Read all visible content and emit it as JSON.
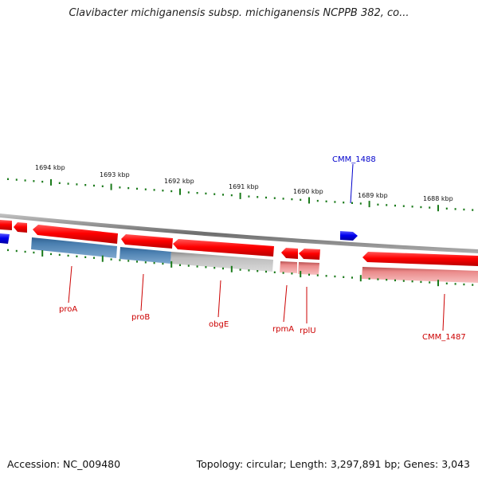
{
  "title": "Clavibacter michiganensis subsp. michiganensis NCPPB 382, co...",
  "footer": {
    "accession": "Accession: NC_009480",
    "summary": "Topology: circular; Length: 3,297,891 bp; Genes: 3,043"
  },
  "scale_labels": [
    "1694 kbp",
    "1693 kbp",
    "1692 kbp",
    "1691 kbp",
    "1690 kbp",
    "1689 kbp",
    "1688 kbp"
  ],
  "gene_labels": [
    {
      "name": "proA",
      "color": "#cc0000"
    },
    {
      "name": "proB",
      "color": "#cc0000"
    },
    {
      "name": "obgE",
      "color": "#cc0000"
    },
    {
      "name": "rpmA",
      "color": "#cc0000"
    },
    {
      "name": "rplU",
      "color": "#cc0000"
    },
    {
      "name": "CMM_1487",
      "color": "#cc0000"
    },
    {
      "name": "CMM_1488",
      "color": "#0000cc"
    }
  ],
  "colors": {
    "forward_gene": "#0000ee",
    "reverse_gene": "#ee0000",
    "backbone": "#888888",
    "ticks": "#1a7a1a",
    "cog_blue": "#4a7fb0",
    "cog_gray": "#b8b8b8",
    "cog_pink": "#e88a8a"
  }
}
